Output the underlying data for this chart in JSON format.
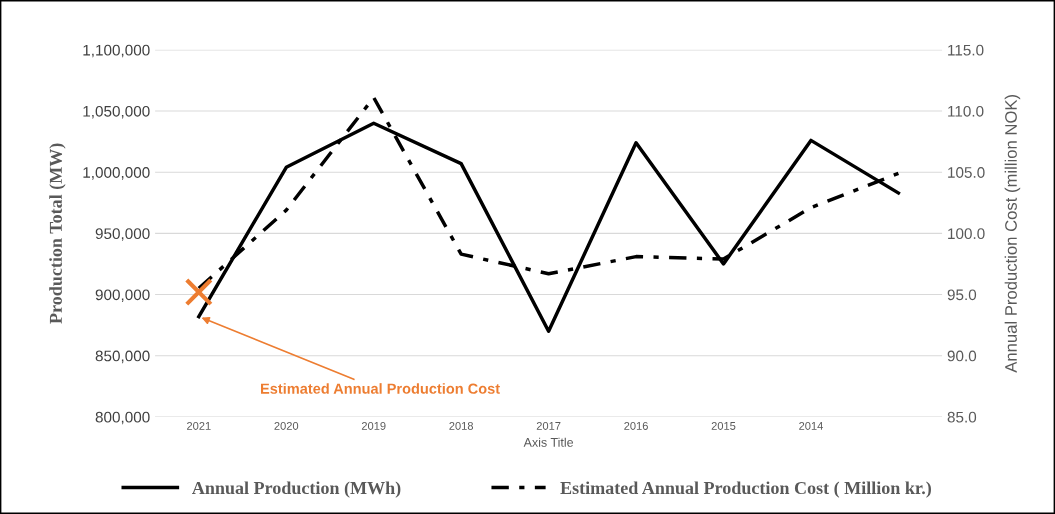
{
  "chart_data": {
    "type": "line",
    "categories": [
      "2021",
      "2020",
      "2019",
      "2018",
      "2017",
      "2016",
      "2015",
      "2014",
      null
    ],
    "xlabel": "Axis Title",
    "ylabel": "Production Total (MW)",
    "y2label": "Annual Production Cost (million NOK)",
    "series": [
      {
        "name": "Annual Production (MWh)",
        "color": "#000000",
        "line_style": "solid",
        "values": [
          882000,
          1004000,
          1040000,
          1007000,
          870000,
          1024000,
          925000,
          1026000,
          983000
        ]
      },
      {
        "name": "Estimated Annual Production Cost ( Million kr.)",
        "color": "#000000",
        "line_style": "dashdot",
        "axis": "y2",
        "values": [
          95.5,
          101.9,
          111.1,
          98.3,
          96.7,
          98.1,
          97.9,
          102.1,
          104.9
        ]
      },
      {
        "type": "scatter",
        "marker": "cross",
        "color": "#ed7d31",
        "axis": "y2",
        "values": [
          95.2,
          null,
          null,
          null,
          null,
          null,
          null,
          null,
          null
        ]
      }
    ],
    "ylim": [
      800000,
      1100000
    ],
    "yticks": [
      {
        "value": 800000,
        "label": "800,000"
      },
      {
        "value": 850000,
        "label": "850,000"
      },
      {
        "value": 900000,
        "label": "900,000"
      },
      {
        "value": 950000,
        "label": "950,000"
      },
      {
        "value": 1000000,
        "label": "1,000,000"
      },
      {
        "value": 1050000,
        "label": "1,050,000"
      },
      {
        "value": 1100000,
        "label": "1,100,000"
      }
    ],
    "y2lim": [
      85,
      115
    ],
    "y2ticks": [
      {
        "value": 85,
        "label": "85.0"
      },
      {
        "value": 90,
        "label": "90.0"
      },
      {
        "value": 95,
        "label": "95.0"
      },
      {
        "value": 100,
        "label": "100.0"
      },
      {
        "value": 105,
        "label": "105.0"
      },
      {
        "value": 110,
        "label": "110.0"
      },
      {
        "value": 115,
        "label": "115.0"
      }
    ],
    "grid": "y",
    "legend": "bottom",
    "annotations": [
      {
        "text": "Estimated Annual Production Cost",
        "x": "2021",
        "y": 882000
      }
    ]
  }
}
